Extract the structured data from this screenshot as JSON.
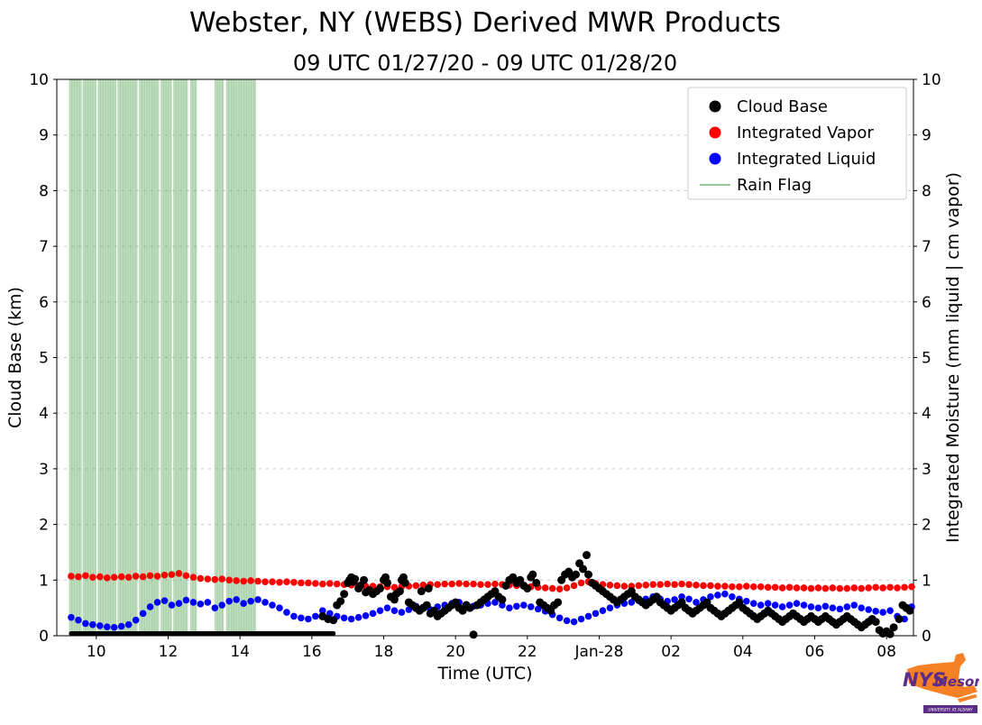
{
  "chart_data": {
    "type": "scatter",
    "title": "Webster, NY (WEBS) Derived MWR Products",
    "subtitle": "09 UTC 01/27/20 - 09 UTC 01/28/20",
    "xlabel": "Time (UTC)",
    "ylabel_left": "Cloud Base (km)",
    "ylabel_right": "Integrated Moisture (mm liquid | cm vapor)",
    "xlim": [
      8.9,
      32.75
    ],
    "ylim": [
      0,
      10
    ],
    "x_ticks": {
      "values": [
        10,
        12,
        14,
        16,
        18,
        20,
        22,
        24,
        26,
        28,
        30,
        32
      ],
      "labels": [
        "10",
        "12",
        "14",
        "16",
        "18",
        "20",
        "22",
        "Jan-28",
        "02",
        "04",
        "06",
        "08"
      ]
    },
    "y_ticks": [
      0,
      1,
      2,
      3,
      4,
      5,
      6,
      7,
      8,
      9,
      10
    ],
    "grid": {
      "y_values": [
        1,
        2,
        3,
        4,
        5,
        6,
        7,
        8,
        9
      ],
      "style": "dashed",
      "color": "#c8c8c8"
    },
    "legend": {
      "position": "upper right",
      "entries": [
        {
          "label": "Cloud Base",
          "marker": "dot",
          "color": "#000000"
        },
        {
          "label": "Integrated Vapor",
          "marker": "dot",
          "color": "#ff0000"
        },
        {
          "label": "Integrated Liquid",
          "marker": "dot",
          "color": "#0000ff"
        },
        {
          "label": "Rain Flag",
          "marker": "line",
          "color": "#74b374"
        }
      ]
    },
    "series": {
      "rain_flag": {
        "name": "Rain Flag",
        "color": "#4da14d",
        "opacity": 0.35,
        "intervals": [
          [
            9.25,
            9.6
          ],
          [
            9.63,
            10.0
          ],
          [
            10.05,
            10.55
          ],
          [
            10.6,
            11.15
          ],
          [
            11.2,
            11.75
          ],
          [
            11.8,
            12.1
          ],
          [
            12.15,
            12.55
          ],
          [
            12.62,
            12.8
          ],
          [
            13.3,
            13.55
          ],
          [
            13.62,
            14.45
          ]
        ]
      },
      "integrated_vapor": {
        "name": "Integrated Vapor",
        "color": "#ff0000",
        "start": 9.3,
        "step": 0.2,
        "values": [
          1.07,
          1.06,
          1.08,
          1.05,
          1.06,
          1.04,
          1.05,
          1.06,
          1.05,
          1.07,
          1.06,
          1.08,
          1.07,
          1.09,
          1.1,
          1.12,
          1.08,
          1.05,
          1.03,
          1.02,
          1.01,
          1.02,
          1.0,
          0.99,
          0.98,
          0.99,
          0.98,
          0.97,
          0.97,
          0.96,
          0.97,
          0.96,
          0.95,
          0.95,
          0.94,
          0.93,
          0.94,
          0.93,
          0.92,
          0.91,
          0.9,
          0.89,
          0.89,
          0.88,
          0.88,
          0.87,
          0.88,
          0.89,
          0.9,
          0.91,
          0.92,
          0.92,
          0.93,
          0.93,
          0.94,
          0.93,
          0.93,
          0.92,
          0.92,
          0.93,
          0.92,
          0.91,
          0.9,
          0.89,
          0.88,
          0.87,
          0.86,
          0.85,
          0.84,
          0.86,
          0.9,
          0.95,
          0.97,
          0.94,
          0.92,
          0.91,
          0.9,
          0.89,
          0.89,
          0.9,
          0.91,
          0.92,
          0.92,
          0.93,
          0.92,
          0.93,
          0.92,
          0.91,
          0.9,
          0.9,
          0.89,
          0.89,
          0.88,
          0.88,
          0.89,
          0.88,
          0.88,
          0.87,
          0.87,
          0.86,
          0.87,
          0.86,
          0.86,
          0.85,
          0.86,
          0.85,
          0.86,
          0.85,
          0.85,
          0.86,
          0.85,
          0.86,
          0.87,
          0.86,
          0.87,
          0.86,
          0.87,
          0.88
        ]
      },
      "integrated_liquid": {
        "name": "Integrated Liquid",
        "color": "#0000ff",
        "start": 9.3,
        "step": 0.2,
        "values": [
          0.33,
          0.28,
          0.22,
          0.2,
          0.18,
          0.16,
          0.15,
          0.17,
          0.2,
          0.28,
          0.4,
          0.52,
          0.6,
          0.63,
          0.55,
          0.58,
          0.64,
          0.6,
          0.57,
          0.6,
          0.5,
          0.55,
          0.62,
          0.65,
          0.58,
          0.62,
          0.65,
          0.6,
          0.55,
          0.5,
          0.42,
          0.35,
          0.32,
          0.3,
          0.35,
          0.45,
          0.4,
          0.35,
          0.32,
          0.3,
          0.33,
          0.36,
          0.4,
          0.45,
          0.5,
          0.45,
          0.42,
          0.47,
          0.53,
          0.5,
          0.47,
          0.52,
          0.55,
          0.58,
          0.6,
          0.56,
          0.53,
          0.55,
          0.58,
          0.6,
          0.55,
          0.5,
          0.53,
          0.55,
          0.52,
          0.48,
          0.44,
          0.38,
          0.32,
          0.27,
          0.25,
          0.3,
          0.35,
          0.4,
          0.45,
          0.5,
          0.55,
          0.58,
          0.6,
          0.63,
          0.66,
          0.7,
          0.66,
          0.62,
          0.65,
          0.7,
          0.66,
          0.6,
          0.65,
          0.7,
          0.73,
          0.75,
          0.7,
          0.66,
          0.62,
          0.58,
          0.55,
          0.58,
          0.55,
          0.52,
          0.55,
          0.58,
          0.55,
          0.52,
          0.5,
          0.53,
          0.5,
          0.48,
          0.52,
          0.55,
          0.5,
          0.47,
          0.44,
          0.42,
          0.45,
          0.35,
          0.3,
          0.52
        ]
      },
      "cloud_base": {
        "name": "Cloud Base",
        "color": "#000000",
        "baseline": {
          "x_start": 9.3,
          "x_end": 16.6,
          "y": 0.04
        },
        "points": [
          [
            16.3,
            0.35
          ],
          [
            16.45,
            0.3
          ],
          [
            16.6,
            0.28
          ],
          [
            16.7,
            0.55
          ],
          [
            16.8,
            0.62
          ],
          [
            16.9,
            0.75
          ],
          [
            17.0,
            0.95
          ],
          [
            17.05,
            1.0
          ],
          [
            17.1,
            1.05
          ],
          [
            17.15,
            0.97
          ],
          [
            17.2,
            1.02
          ],
          [
            17.3,
            0.85
          ],
          [
            17.35,
            0.9
          ],
          [
            17.45,
            1.0
          ],
          [
            17.5,
            0.78
          ],
          [
            17.6,
            0.82
          ],
          [
            17.7,
            0.75
          ],
          [
            17.8,
            0.8
          ],
          [
            17.9,
            0.85
          ],
          [
            18.0,
            1.0
          ],
          [
            18.05,
            1.05
          ],
          [
            18.1,
            0.95
          ],
          [
            18.2,
            0.7
          ],
          [
            18.3,
            0.65
          ],
          [
            18.35,
            0.75
          ],
          [
            18.45,
            0.8
          ],
          [
            18.5,
            1.0
          ],
          [
            18.55,
            1.05
          ],
          [
            18.6,
            0.95
          ],
          [
            18.7,
            0.6
          ],
          [
            18.8,
            0.55
          ],
          [
            18.9,
            0.5
          ],
          [
            19.0,
            0.45
          ],
          [
            19.05,
            0.8
          ],
          [
            19.1,
            0.5
          ],
          [
            19.2,
            0.55
          ],
          [
            19.25,
            0.85
          ],
          [
            19.3,
            0.4
          ],
          [
            19.4,
            0.45
          ],
          [
            19.5,
            0.35
          ],
          [
            19.6,
            0.4
          ],
          [
            19.7,
            0.45
          ],
          [
            19.8,
            0.5
          ],
          [
            19.9,
            0.55
          ],
          [
            20.0,
            0.6
          ],
          [
            20.1,
            0.5
          ],
          [
            20.2,
            0.45
          ],
          [
            20.3,
            0.55
          ],
          [
            20.4,
            0.5
          ],
          [
            20.5,
            0.02
          ],
          [
            20.6,
            0.55
          ],
          [
            20.7,
            0.6
          ],
          [
            20.8,
            0.65
          ],
          [
            20.9,
            0.7
          ],
          [
            21.0,
            0.75
          ],
          [
            21.1,
            0.8
          ],
          [
            21.2,
            0.7
          ],
          [
            21.3,
            0.65
          ],
          [
            21.4,
            0.9
          ],
          [
            21.5,
            1.0
          ],
          [
            21.6,
            1.05
          ],
          [
            21.7,
            0.95
          ],
          [
            21.8,
            1.0
          ],
          [
            21.9,
            0.9
          ],
          [
            22.0,
            0.85
          ],
          [
            22.1,
            1.05
          ],
          [
            22.15,
            1.1
          ],
          [
            22.25,
            0.95
          ],
          [
            22.35,
            0.6
          ],
          [
            22.45,
            0.55
          ],
          [
            22.55,
            0.5
          ],
          [
            22.65,
            0.45
          ],
          [
            22.75,
            0.55
          ],
          [
            22.85,
            0.6
          ],
          [
            22.95,
            1.0
          ],
          [
            23.05,
            1.1
          ],
          [
            23.15,
            1.15
          ],
          [
            23.25,
            1.05
          ],
          [
            23.35,
            1.1
          ],
          [
            23.45,
            1.3
          ],
          [
            23.55,
            1.2
          ],
          [
            23.65,
            1.45
          ],
          [
            23.7,
            1.1
          ],
          [
            23.8,
            0.95
          ],
          [
            23.9,
            0.9
          ],
          [
            24.0,
            0.85
          ],
          [
            24.1,
            0.8
          ],
          [
            24.2,
            0.75
          ],
          [
            24.3,
            0.7
          ],
          [
            24.4,
            0.65
          ],
          [
            24.5,
            0.6
          ],
          [
            24.6,
            0.65
          ],
          [
            24.7,
            0.7
          ],
          [
            24.8,
            0.75
          ],
          [
            24.9,
            0.8
          ],
          [
            25.0,
            0.7
          ],
          [
            25.1,
            0.65
          ],
          [
            25.2,
            0.6
          ],
          [
            25.3,
            0.55
          ],
          [
            25.4,
            0.6
          ],
          [
            25.5,
            0.65
          ],
          [
            25.6,
            0.7
          ],
          [
            25.7,
            0.6
          ],
          [
            25.8,
            0.55
          ],
          [
            25.9,
            0.5
          ],
          [
            26.0,
            0.45
          ],
          [
            26.1,
            0.5
          ],
          [
            26.2,
            0.55
          ],
          [
            26.3,
            0.6
          ],
          [
            26.4,
            0.5
          ],
          [
            26.5,
            0.45
          ],
          [
            26.6,
            0.4
          ],
          [
            26.7,
            0.45
          ],
          [
            26.8,
            0.5
          ],
          [
            26.9,
            0.55
          ],
          [
            27.0,
            0.6
          ],
          [
            27.1,
            0.5
          ],
          [
            27.2,
            0.45
          ],
          [
            27.3,
            0.4
          ],
          [
            27.4,
            0.35
          ],
          [
            27.5,
            0.4
          ],
          [
            27.6,
            0.45
          ],
          [
            27.7,
            0.5
          ],
          [
            27.8,
            0.55
          ],
          [
            27.9,
            0.6
          ],
          [
            28.0,
            0.5
          ],
          [
            28.1,
            0.45
          ],
          [
            28.2,
            0.4
          ],
          [
            28.3,
            0.35
          ],
          [
            28.4,
            0.3
          ],
          [
            28.5,
            0.35
          ],
          [
            28.6,
            0.4
          ],
          [
            28.7,
            0.45
          ],
          [
            28.8,
            0.4
          ],
          [
            28.9,
            0.35
          ],
          [
            29.0,
            0.3
          ],
          [
            29.1,
            0.25
          ],
          [
            29.2,
            0.3
          ],
          [
            29.3,
            0.35
          ],
          [
            29.4,
            0.4
          ],
          [
            29.5,
            0.35
          ],
          [
            29.6,
            0.3
          ],
          [
            29.7,
            0.25
          ],
          [
            29.8,
            0.3
          ],
          [
            29.9,
            0.35
          ],
          [
            30.0,
            0.3
          ],
          [
            30.1,
            0.25
          ],
          [
            30.2,
            0.3
          ],
          [
            30.3,
            0.35
          ],
          [
            30.4,
            0.3
          ],
          [
            30.5,
            0.25
          ],
          [
            30.6,
            0.2
          ],
          [
            30.7,
            0.25
          ],
          [
            30.8,
            0.3
          ],
          [
            30.9,
            0.35
          ],
          [
            31.0,
            0.3
          ],
          [
            31.1,
            0.25
          ],
          [
            31.2,
            0.2
          ],
          [
            31.3,
            0.15
          ],
          [
            31.4,
            0.2
          ],
          [
            31.5,
            0.25
          ],
          [
            31.6,
            0.3
          ],
          [
            31.7,
            0.25
          ],
          [
            31.8,
            0.1
          ],
          [
            31.9,
            0.04
          ],
          [
            32.0,
            0.08
          ],
          [
            32.1,
            0.03
          ],
          [
            32.2,
            0.15
          ],
          [
            32.35,
            0.3
          ],
          [
            32.45,
            0.55
          ],
          [
            32.55,
            0.5
          ],
          [
            32.65,
            0.45
          ]
        ]
      }
    }
  },
  "logo": {
    "nys": "NYS",
    "mesonet": "Mesonet",
    "tagline": "UNIVERSITY AT ALBANY"
  }
}
